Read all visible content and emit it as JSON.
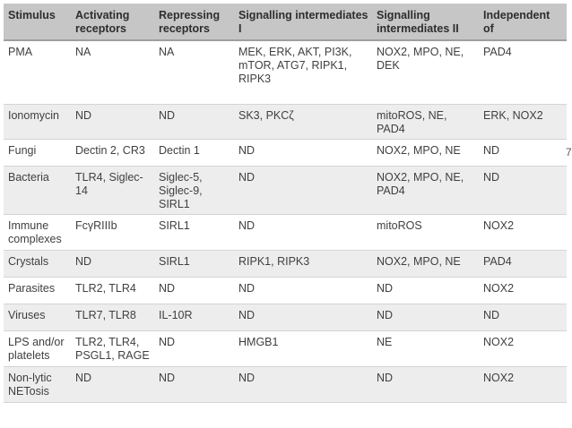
{
  "table": {
    "headers": [
      "Stimulus",
      "Activating receptors",
      "Repressing receptors",
      "Signalling intermediates I",
      "Signalling intermediates II",
      "Independent of"
    ],
    "rows": [
      [
        "PMA",
        "NA",
        "NA",
        "MEK, ERK, AKT, PI3K, mTOR, ATG7, RIPK1, RIPK3",
        "NOX2, MPO, NE, DEK",
        "PAD4"
      ],
      [
        "Ionomycin",
        "ND",
        "ND",
        "SK3, PKCζ",
        "mitoROS, NE, PAD4",
        "ERK, NOX2"
      ],
      [
        "Fungi",
        "Dectin 2, CR3",
        "Dectin 1",
        "ND",
        "NOX2, MPO, NE",
        "ND"
      ],
      [
        "Bacteria",
        "TLR4, Siglec-14",
        "Siglec-5, Siglec-9, SIRL1",
        "ND",
        "NOX2, MPO, NE, PAD4",
        "ND"
      ],
      [
        "Immune complexes",
        "FcγRIIIb",
        "SIRL1",
        "ND",
        "mitoROS",
        "NOX2"
      ],
      [
        "Crystals",
        "ND",
        "SIRL1",
        "RIPK1, RIPK3",
        "NOX2, MPO, NE",
        "PAD4"
      ],
      [
        "Parasites",
        "TLR2, TLR4",
        "ND",
        "ND",
        "ND",
        "NOX2"
      ],
      [
        "Viruses",
        "TLR7, TLR8",
        "IL-10R",
        "ND",
        "ND",
        "ND"
      ],
      [
        "LPS and/or platelets",
        "TLR2, TLR4, PSGL1, RAGE",
        "ND",
        "HMGB1",
        "NE",
        "NOX2"
      ],
      [
        "Non-lytic NETosis",
        "ND",
        "ND",
        "ND",
        "ND",
        "NOX2"
      ]
    ],
    "stray_glyph": "7"
  }
}
